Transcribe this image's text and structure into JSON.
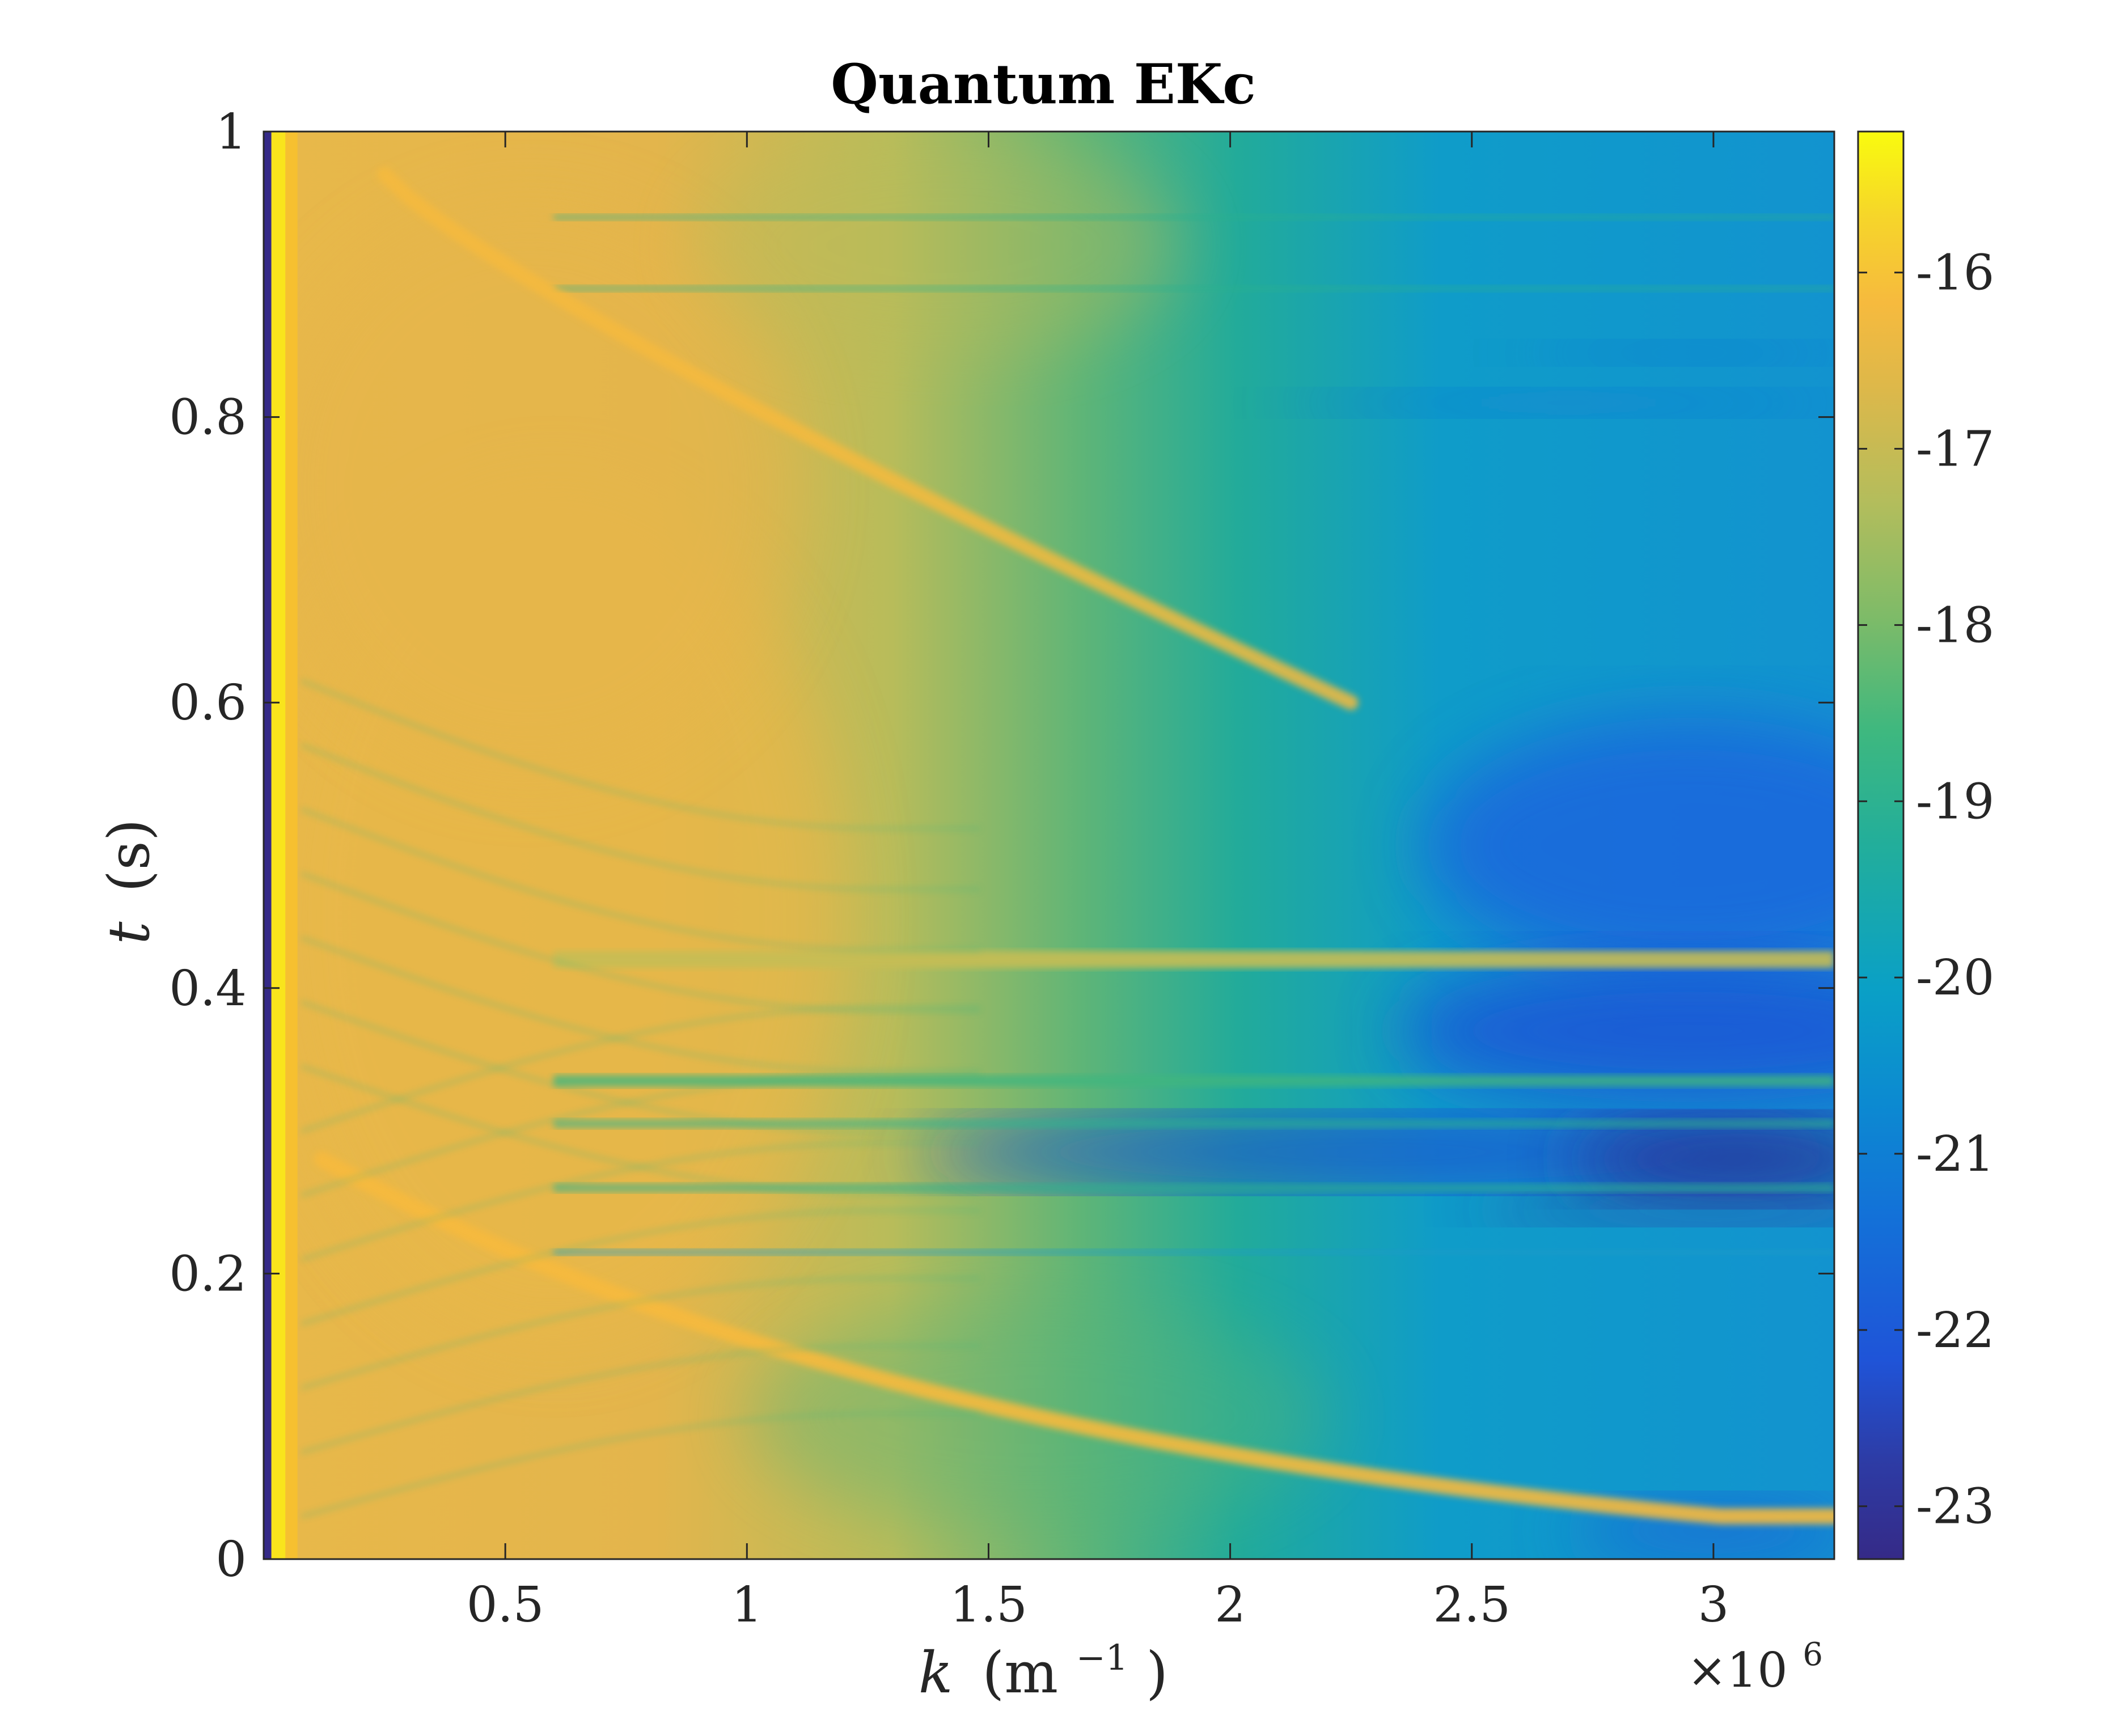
{
  "chart_data": {
    "type": "heatmap",
    "title": "Quantum EKc",
    "xlabel": "k (m⁻¹)",
    "xlabel_parts": {
      "var": "k",
      "unit_open": "(m",
      "exponent": "−1",
      "unit_close": ")"
    },
    "x_exponent_label": "×10",
    "x_exponent_power": "6",
    "ylabel": "t (s)",
    "ylabel_parts": {
      "var": "t",
      "unit": "(s)"
    },
    "xlim": [
      0,
      3.25
    ],
    "ylim": [
      0,
      1
    ],
    "x_ticks": [
      {
        "value": 0.5,
        "label": "0.5"
      },
      {
        "value": 1,
        "label": "1"
      },
      {
        "value": 1.5,
        "label": "1.5"
      },
      {
        "value": 2,
        "label": "2"
      },
      {
        "value": 2.5,
        "label": "2.5"
      },
      {
        "value": 3,
        "label": "3"
      }
    ],
    "y_ticks": [
      {
        "value": 0,
        "label": "0"
      },
      {
        "value": 0.2,
        "label": "0.2"
      },
      {
        "value": 0.4,
        "label": "0.4"
      },
      {
        "value": 0.6,
        "label": "0.6"
      },
      {
        "value": 0.8,
        "label": "0.8"
      },
      {
        "value": 1,
        "label": "1"
      }
    ],
    "colorbar": {
      "colormap": "parula",
      "clim": [
        -23.3,
        -15.2
      ],
      "ticks": [
        {
          "value": -16,
          "label": "-16"
        },
        {
          "value": -17,
          "label": "-17"
        },
        {
          "value": -18,
          "label": "-18"
        },
        {
          "value": -19,
          "label": "-19"
        },
        {
          "value": -20,
          "label": "-20"
        },
        {
          "value": -21,
          "label": "-21"
        },
        {
          "value": -22,
          "label": "-22"
        },
        {
          "value": -23,
          "label": "-23"
        }
      ]
    },
    "grid": false,
    "features": {
      "high_band_k_left": {
        "k": 0.03,
        "value": -15.3
      },
      "bright_ridges": [
        {
          "t": 0.3,
          "k_start": 0.1,
          "k_end": 3.25,
          "t_end": 0.05
        },
        {
          "t": 0.97,
          "k_start": 0.2,
          "k_end": 2.25,
          "t_end": 0.6
        }
      ],
      "horizontal_bands_t": [
        0.42,
        0.335,
        0.285,
        0.245,
        0.215,
        0.8,
        0.85,
        0.87
      ]
    }
  }
}
